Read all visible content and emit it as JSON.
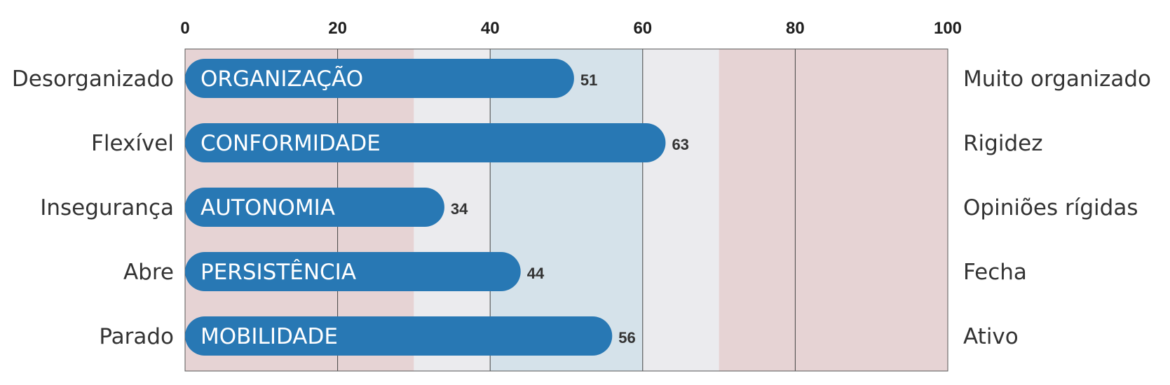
{
  "chart_data": {
    "type": "bar",
    "orientation": "horizontal",
    "xlim": [
      0,
      100
    ],
    "ticks": [
      "0",
      "20",
      "40",
      "60",
      "80",
      "100"
    ],
    "tick_values": [
      0,
      20,
      40,
      60,
      80,
      100
    ],
    "bands": [
      {
        "from": 0,
        "to": 30,
        "color": "#e6d3d4"
      },
      {
        "from": 30,
        "to": 40,
        "color": "#ebebee"
      },
      {
        "from": 40,
        "to": 60,
        "color": "#d5e2ea"
      },
      {
        "from": 60,
        "to": 70,
        "color": "#ebebee"
      },
      {
        "from": 70,
        "to": 100,
        "color": "#e6d3d4"
      }
    ],
    "bar_color": "#2878b4",
    "categories": [
      {
        "label": "ORGANIZAÇÃO",
        "value": 51,
        "value_label": "51",
        "left": "Desorganizado",
        "right": "Muito organizado"
      },
      {
        "label": "CONFORMIDADE",
        "value": 63,
        "value_label": "63",
        "left": "Flexível",
        "right": "Rigidez"
      },
      {
        "label": "AUTONOMIA",
        "value": 34,
        "value_label": "34",
        "left": "Insegurança",
        "right": "Opiniões rígidas"
      },
      {
        "label": "PERSISTÊNCIA",
        "value": 44,
        "value_label": "44",
        "left": "Abre",
        "right": "Fecha"
      },
      {
        "label": "MOBILIDADE",
        "value": 56,
        "value_label": "56",
        "left": "Parado",
        "right": "Ativo"
      }
    ],
    "grid": true
  }
}
